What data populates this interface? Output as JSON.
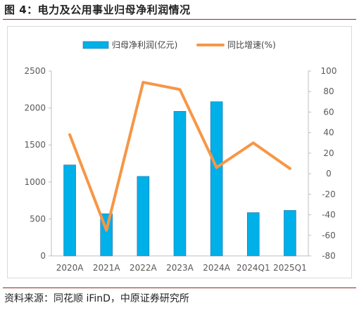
{
  "figure_title": "图 4：电力及公用事业归母净利润情况",
  "source_note": "资料来源：同花顺 iFinD，中原证券研究所",
  "chart_data": {
    "type": "bar+line",
    "categories": [
      "2020A",
      "2021A",
      "2022A",
      "2023A",
      "2024A",
      "2024Q1",
      "2025Q1"
    ],
    "series": [
      {
        "name": "归母净利润(亿元)",
        "type": "bar",
        "axis": "left",
        "color": "#00b0e8",
        "values": [
          1230,
          570,
          1075,
          1955,
          2085,
          585,
          615
        ]
      },
      {
        "name": "同比增速(%)",
        "type": "line",
        "axis": "right",
        "color": "#f79646",
        "values": [
          38,
          -55,
          89,
          82,
          6,
          30,
          5
        ]
      }
    ],
    "y_left": {
      "min": 0,
      "max": 2500,
      "ticks": [
        0,
        500,
        1000,
        1500,
        2000,
        2500
      ]
    },
    "y_right": {
      "min": -80,
      "max": 100,
      "ticks": [
        -80,
        -60,
        -40,
        -20,
        0,
        20,
        40,
        60,
        80,
        100
      ]
    },
    "legend_position": "top",
    "grid": false
  }
}
